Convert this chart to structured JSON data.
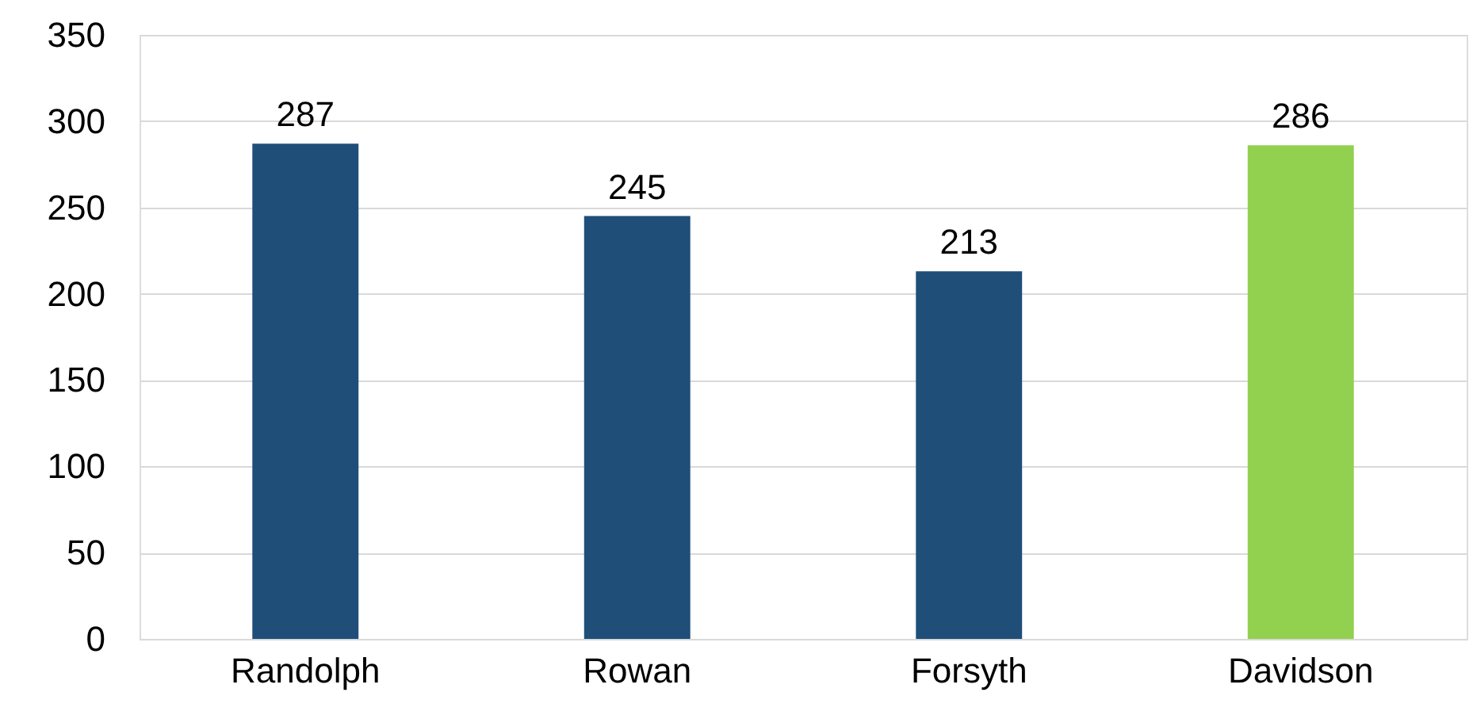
{
  "chart_data": {
    "type": "bar",
    "categories": [
      "Randolph",
      "Rowan",
      "Forsyth",
      "Davidson"
    ],
    "values": [
      287,
      245,
      213,
      286
    ],
    "colors": [
      "#1f4e79",
      "#1f4e79",
      "#1f4e79",
      "#92d050"
    ],
    "ylim": [
      0,
      350
    ],
    "yticks": [
      0,
      50,
      100,
      150,
      200,
      250,
      300,
      350
    ],
    "grid": "y",
    "data_labels": true
  }
}
